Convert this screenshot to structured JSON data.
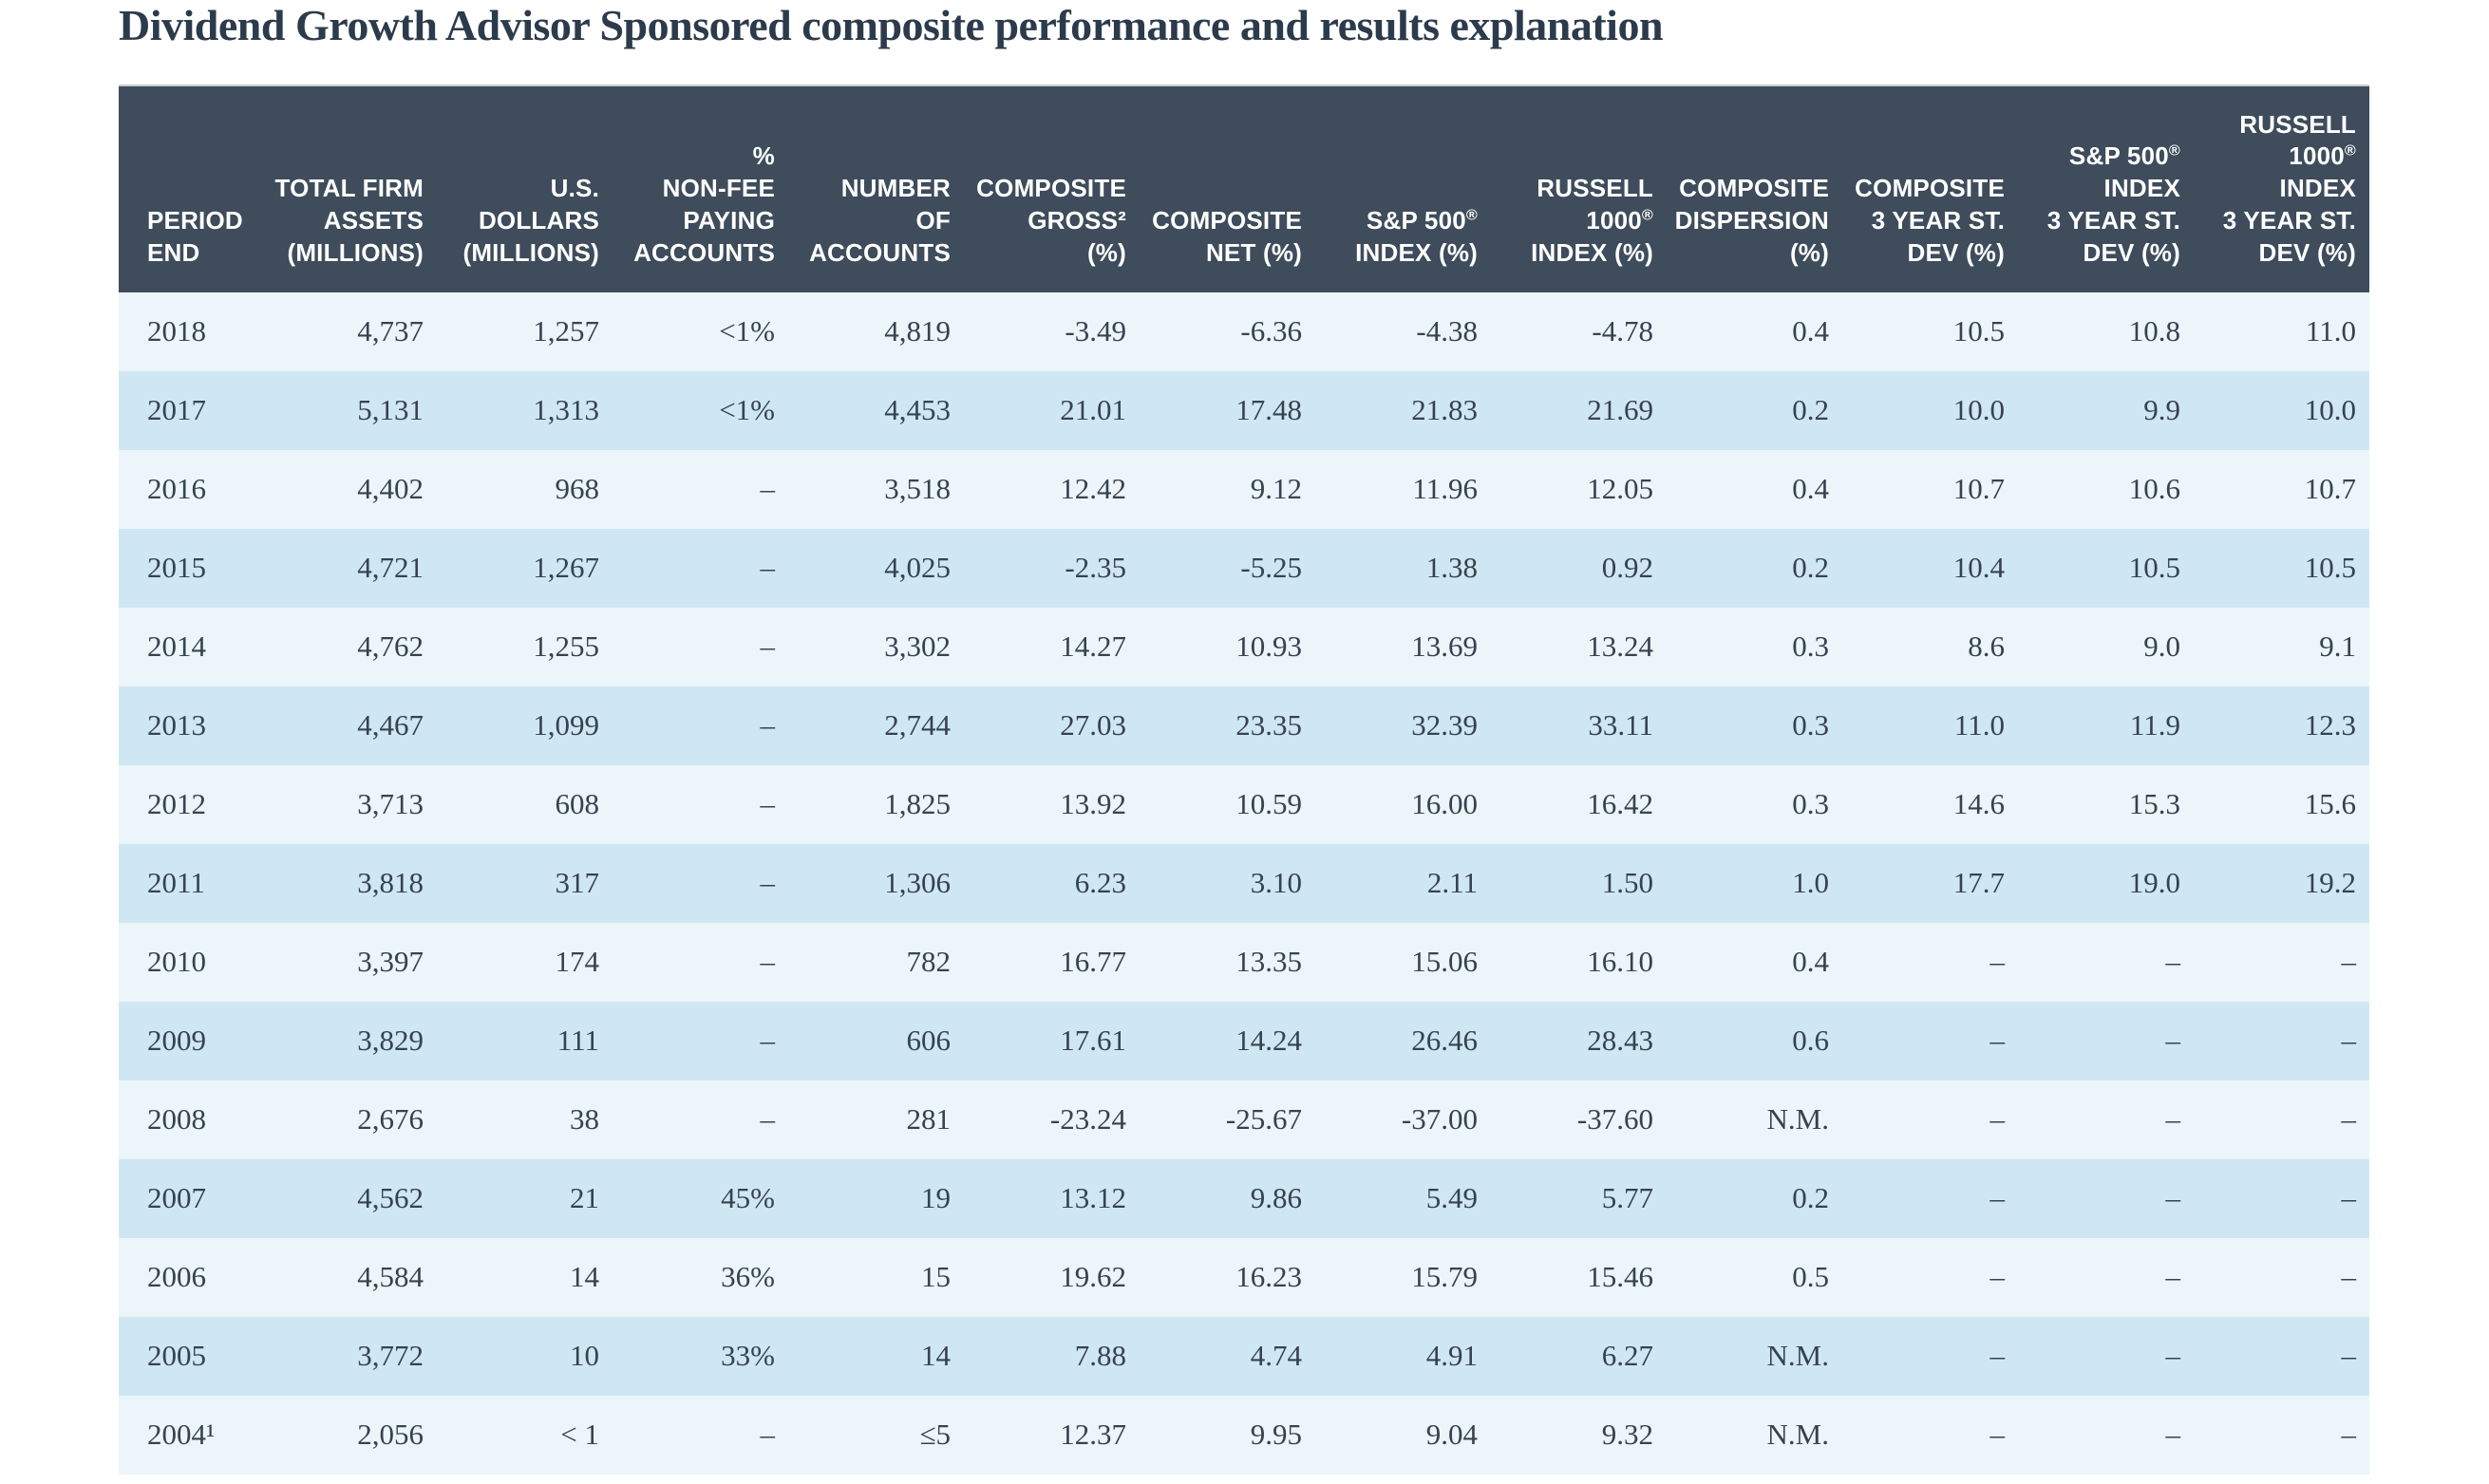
{
  "page": {
    "title": "Dividend Growth Advisor Sponsored composite performance and results explanation"
  },
  "colors": {
    "header_background": "#3e4c5b",
    "header_text": "#ffffff",
    "row_light": "#ecf5f9",
    "row_shaded": "#cfe7f2",
    "body_text": "#36434f",
    "title_text": "#2c3b4c",
    "table_top_border": "#c9ced6"
  },
  "table": {
    "columns": [
      {
        "id": "period_end",
        "label": "PERIOD\nEND",
        "align": "left"
      },
      {
        "id": "total_firm_assets",
        "label": "TOTAL FIRM\nASSETS\n(MILLIONS)",
        "align": "right"
      },
      {
        "id": "us_dollars",
        "label": "U.S.\nDOLLARS\n(MILLIONS)",
        "align": "right"
      },
      {
        "id": "pct_non_fee_paying",
        "label": "%\nNON-FEE\nPAYING\nACCOUNTS",
        "align": "right"
      },
      {
        "id": "number_of_accounts",
        "label": "NUMBER\nOF\nACCOUNTS",
        "align": "right"
      },
      {
        "id": "composite_gross",
        "label": "COMPOSITE\nGROSS²\n(%)",
        "align": "right"
      },
      {
        "id": "composite_net",
        "label": "COMPOSITE\nNET (%)",
        "align": "right"
      },
      {
        "id": "sp500_index",
        "label": "S&P 500®\nINDEX (%)",
        "align": "right"
      },
      {
        "id": "russell1000_index",
        "label": "RUSSELL\n1000®\nINDEX (%)",
        "align": "right"
      },
      {
        "id": "composite_dispersion",
        "label": "COMPOSITE\nDISPERSION\n(%)",
        "align": "right"
      },
      {
        "id": "composite_3yr_stdev",
        "label": "COMPOSITE\n3 YEAR ST.\nDEV (%)",
        "align": "right"
      },
      {
        "id": "sp500_3yr_stdev",
        "label": "S&P 500®\nINDEX\n3 YEAR ST.\nDEV (%)",
        "align": "right"
      },
      {
        "id": "russell1000_3yr_stdev",
        "label": "RUSSELL\n1000®\nINDEX\n3 YEAR ST.\nDEV (%)",
        "align": "right"
      }
    ],
    "rows": [
      [
        "2018",
        "4,737",
        "1,257",
        "<1%",
        "4,819",
        "-3.49",
        "-6.36",
        "-4.38",
        "-4.78",
        "0.4",
        "10.5",
        "10.8",
        "11.0"
      ],
      [
        "2017",
        "5,131",
        "1,313",
        "<1%",
        "4,453",
        "21.01",
        "17.48",
        "21.83",
        "21.69",
        "0.2",
        "10.0",
        "9.9",
        "10.0"
      ],
      [
        "2016",
        "4,402",
        "968",
        "–",
        "3,518",
        "12.42",
        "9.12",
        "11.96",
        "12.05",
        "0.4",
        "10.7",
        "10.6",
        "10.7"
      ],
      [
        "2015",
        "4,721",
        "1,267",
        "–",
        "4,025",
        "-2.35",
        "-5.25",
        "1.38",
        "0.92",
        "0.2",
        "10.4",
        "10.5",
        "10.5"
      ],
      [
        "2014",
        "4,762",
        "1,255",
        "–",
        "3,302",
        "14.27",
        "10.93",
        "13.69",
        "13.24",
        "0.3",
        "8.6",
        "9.0",
        "9.1"
      ],
      [
        "2013",
        "4,467",
        "1,099",
        "–",
        "2,744",
        "27.03",
        "23.35",
        "32.39",
        "33.11",
        "0.3",
        "11.0",
        "11.9",
        "12.3"
      ],
      [
        "2012",
        "3,713",
        "608",
        "–",
        "1,825",
        "13.92",
        "10.59",
        "16.00",
        "16.42",
        "0.3",
        "14.6",
        "15.3",
        "15.6"
      ],
      [
        "2011",
        "3,818",
        "317",
        "–",
        "1,306",
        "6.23",
        "3.10",
        "2.11",
        "1.50",
        "1.0",
        "17.7",
        "19.0",
        "19.2"
      ],
      [
        "2010",
        "3,397",
        "174",
        "–",
        "782",
        "16.77",
        "13.35",
        "15.06",
        "16.10",
        "0.4",
        "–",
        "–",
        "–"
      ],
      [
        "2009",
        "3,829",
        "111",
        "–",
        "606",
        "17.61",
        "14.24",
        "26.46",
        "28.43",
        "0.6",
        "–",
        "–",
        "–"
      ],
      [
        "2008",
        "2,676",
        "38",
        "–",
        "281",
        "-23.24",
        "-25.67",
        "-37.00",
        "-37.60",
        "N.M.",
        "–",
        "–",
        "–"
      ],
      [
        "2007",
        "4,562",
        "21",
        "45%",
        "19",
        "13.12",
        "9.86",
        "5.49",
        "5.77",
        "0.2",
        "–",
        "–",
        "–"
      ],
      [
        "2006",
        "4,584",
        "14",
        "36%",
        "15",
        "19.62",
        "16.23",
        "15.79",
        "15.46",
        "0.5",
        "–",
        "–",
        "–"
      ],
      [
        "2005",
        "3,772",
        "10",
        "33%",
        "14",
        "7.88",
        "4.74",
        "4.91",
        "6.27",
        "N.M.",
        "–",
        "–",
        "–"
      ],
      [
        "2004¹",
        "2,056",
        "< 1",
        "–",
        "≤5",
        "12.37",
        "9.95",
        "9.04",
        "9.32",
        "N.M.",
        "–",
        "–",
        "–"
      ]
    ]
  }
}
